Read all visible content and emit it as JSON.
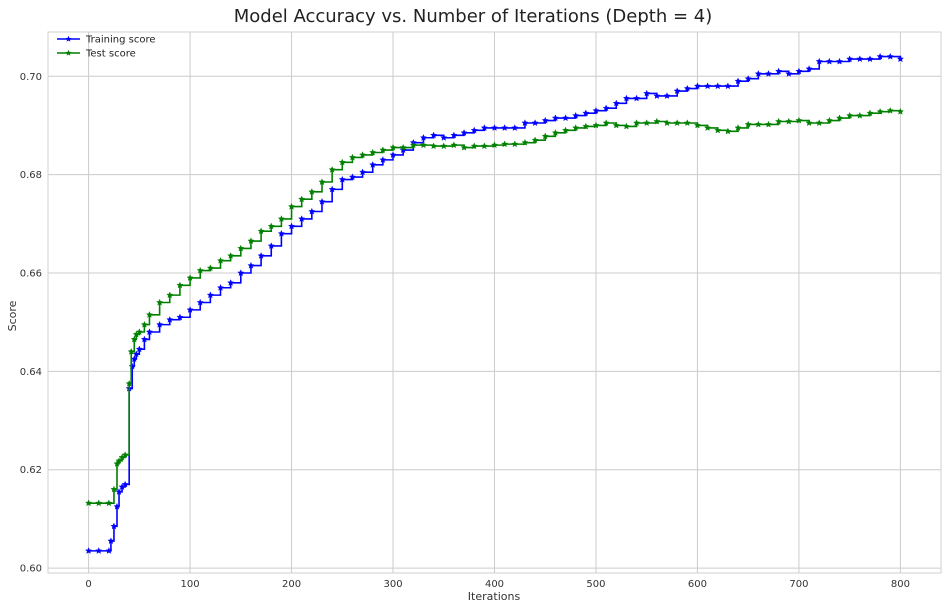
{
  "chart_data": {
    "type": "line",
    "title": "Model Accuracy vs. Number of Iterations (Depth = 4)",
    "xlabel": "Iterations",
    "ylabel": "Score",
    "xlim": [
      -40,
      840
    ],
    "ylim": [
      0.599,
      0.709
    ],
    "xticks": [
      0,
      100,
      200,
      300,
      400,
      500,
      600,
      700,
      800
    ],
    "yticks": [
      0.6,
      0.62,
      0.64,
      0.66,
      0.68,
      0.7
    ],
    "xtick_labels": [
      "0",
      "100",
      "200",
      "300",
      "400",
      "500",
      "600",
      "700",
      "800"
    ],
    "ytick_labels": [
      "0.60",
      "0.62",
      "0.64",
      "0.66",
      "0.68",
      "0.70"
    ],
    "grid": true,
    "legend_position": "top-left",
    "marker": "star",
    "series": [
      {
        "name": "Training score",
        "color": "#0000ff",
        "x": [
          0,
          10,
          20,
          22,
          25,
          28,
          30,
          33,
          36,
          40,
          43,
          45,
          47,
          50,
          55,
          60,
          70,
          80,
          90,
          100,
          110,
          120,
          130,
          140,
          150,
          160,
          170,
          180,
          190,
          200,
          210,
          220,
          230,
          240,
          250,
          260,
          270,
          280,
          290,
          300,
          310,
          320,
          330,
          340,
          350,
          360,
          370,
          380,
          390,
          400,
          410,
          420,
          430,
          440,
          450,
          460,
          470,
          480,
          490,
          500,
          510,
          520,
          530,
          540,
          550,
          560,
          570,
          580,
          590,
          600,
          610,
          620,
          630,
          640,
          650,
          660,
          670,
          680,
          690,
          700,
          710,
          720,
          730,
          740,
          750,
          760,
          770,
          780,
          790,
          800
        ],
        "y": [
          0.6035,
          0.6035,
          0.6035,
          0.6055,
          0.6085,
          0.6125,
          0.6155,
          0.6165,
          0.617,
          0.6365,
          0.641,
          0.6425,
          0.6435,
          0.6445,
          0.6465,
          0.648,
          0.6495,
          0.6505,
          0.651,
          0.6525,
          0.654,
          0.6555,
          0.657,
          0.658,
          0.66,
          0.6615,
          0.6635,
          0.6655,
          0.668,
          0.6695,
          0.671,
          0.6725,
          0.6745,
          0.677,
          0.679,
          0.6795,
          0.6805,
          0.682,
          0.683,
          0.684,
          0.685,
          0.6865,
          0.6875,
          0.688,
          0.6875,
          0.688,
          0.6885,
          0.689,
          0.6895,
          0.6895,
          0.6895,
          0.6895,
          0.6905,
          0.6905,
          0.691,
          0.6915,
          0.6915,
          0.692,
          0.6925,
          0.693,
          0.6935,
          0.6945,
          0.6955,
          0.6955,
          0.6965,
          0.696,
          0.696,
          0.697,
          0.6975,
          0.698,
          0.698,
          0.698,
          0.698,
          0.699,
          0.6995,
          0.7005,
          0.7005,
          0.701,
          0.7005,
          0.701,
          0.7015,
          0.703,
          0.703,
          0.703,
          0.7035,
          0.7035,
          0.7035,
          0.704,
          0.704,
          0.7035
        ]
      },
      {
        "name": "Test score",
        "color": "#008000",
        "x": [
          0,
          10,
          20,
          25,
          28,
          30,
          33,
          36,
          40,
          42,
          45,
          47,
          50,
          55,
          60,
          70,
          80,
          90,
          100,
          110,
          120,
          130,
          140,
          150,
          160,
          170,
          180,
          190,
          200,
          210,
          220,
          230,
          240,
          250,
          260,
          270,
          280,
          290,
          300,
          310,
          320,
          330,
          340,
          350,
          360,
          370,
          380,
          390,
          400,
          410,
          420,
          430,
          440,
          450,
          460,
          470,
          480,
          490,
          500,
          510,
          520,
          530,
          540,
          550,
          560,
          570,
          580,
          590,
          600,
          610,
          620,
          630,
          640,
          650,
          660,
          670,
          680,
          690,
          700,
          710,
          720,
          730,
          740,
          750,
          760,
          770,
          780,
          790,
          800
        ],
        "y": [
          0.6132,
          0.6132,
          0.6132,
          0.616,
          0.6212,
          0.6218,
          0.6225,
          0.623,
          0.6375,
          0.644,
          0.6465,
          0.6475,
          0.648,
          0.6495,
          0.6515,
          0.654,
          0.6555,
          0.6575,
          0.659,
          0.6605,
          0.661,
          0.6625,
          0.6635,
          0.665,
          0.6665,
          0.6685,
          0.6695,
          0.671,
          0.6735,
          0.675,
          0.6765,
          0.6785,
          0.681,
          0.6825,
          0.6835,
          0.684,
          0.6845,
          0.685,
          0.6855,
          0.6855,
          0.686,
          0.686,
          0.6858,
          0.6858,
          0.686,
          0.6855,
          0.6858,
          0.6858,
          0.686,
          0.6862,
          0.6862,
          0.6865,
          0.687,
          0.6878,
          0.6885,
          0.689,
          0.6895,
          0.6898,
          0.69,
          0.6905,
          0.69,
          0.6898,
          0.6905,
          0.6905,
          0.6908,
          0.6905,
          0.6905,
          0.6905,
          0.69,
          0.6895,
          0.689,
          0.6888,
          0.6895,
          0.6902,
          0.6902,
          0.6902,
          0.6908,
          0.6908,
          0.691,
          0.6905,
          0.6905,
          0.691,
          0.6915,
          0.692,
          0.692,
          0.6925,
          0.6928,
          0.693,
          0.6928
        ]
      }
    ]
  }
}
